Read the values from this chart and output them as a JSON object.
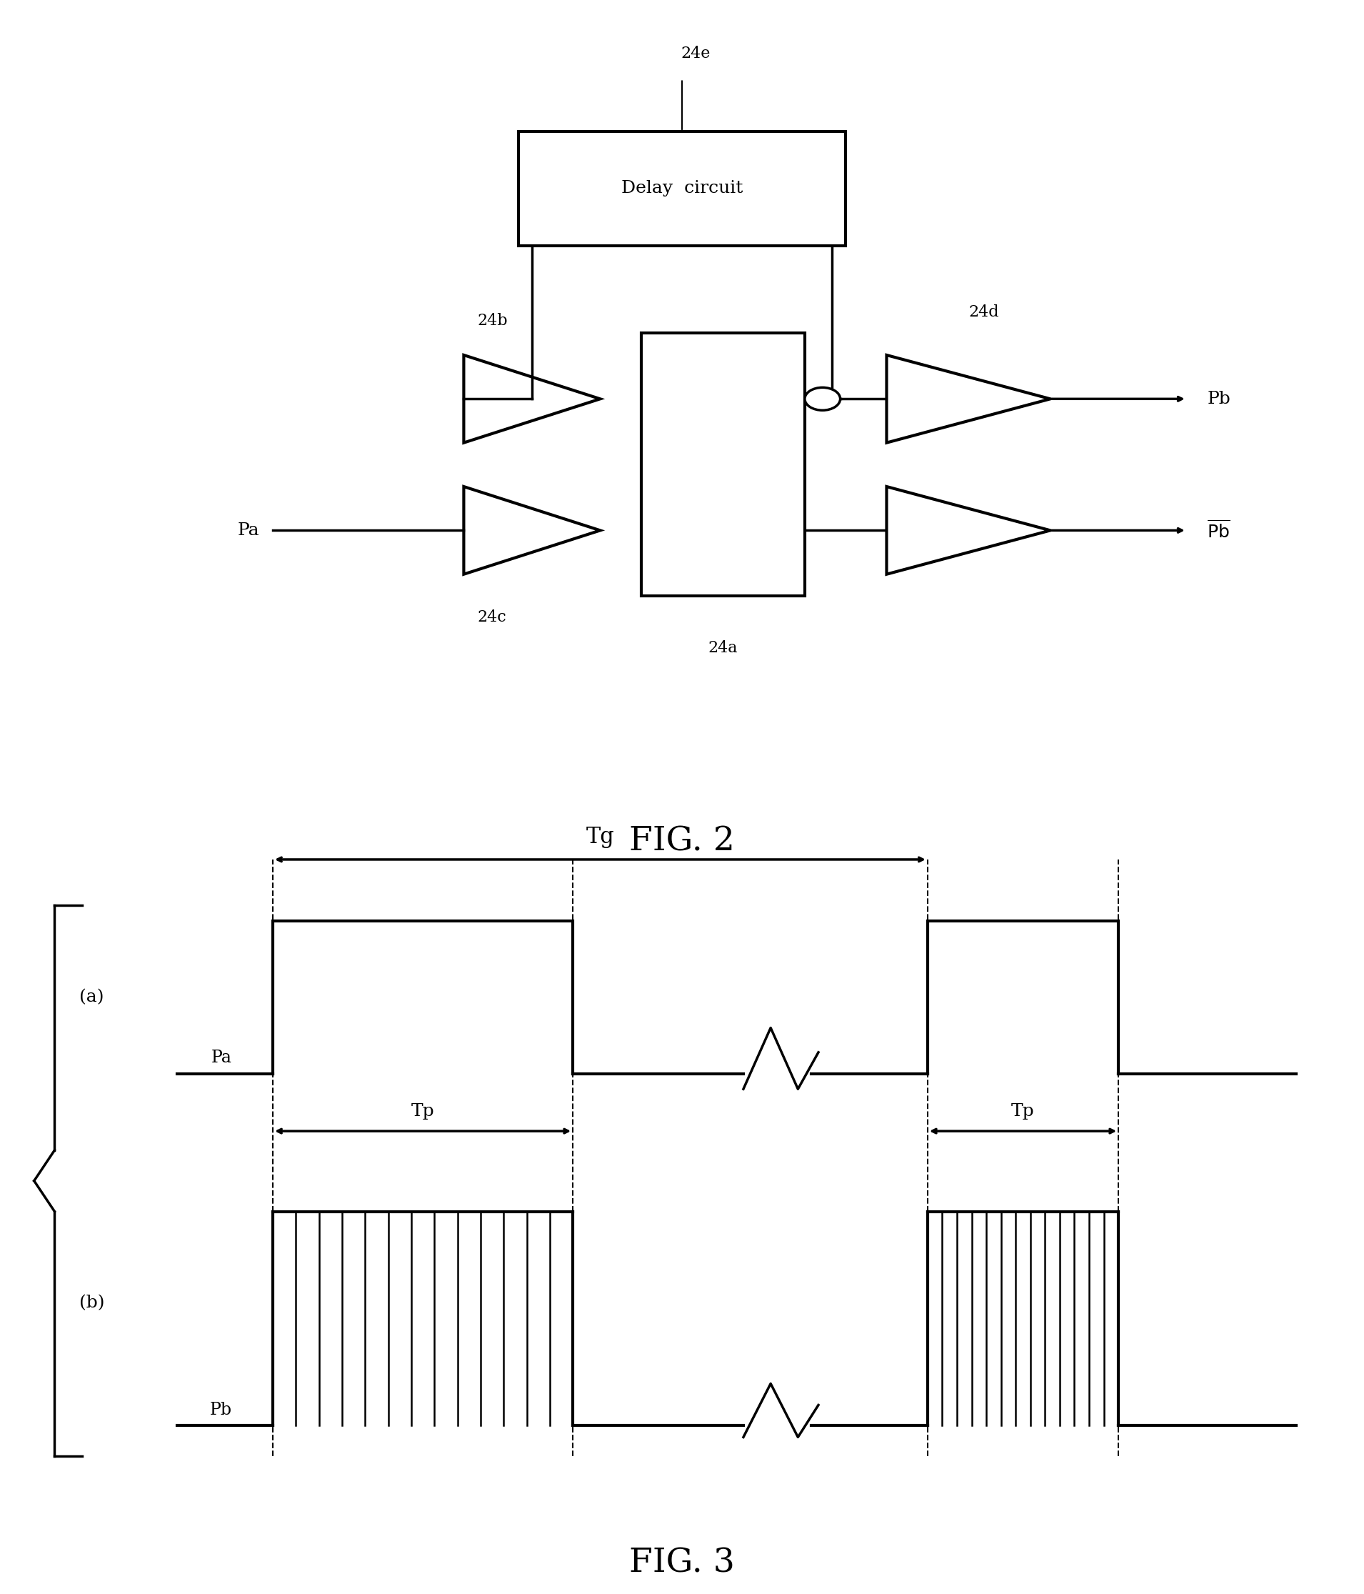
{
  "fig2_title": "FIG. 2",
  "fig3_title": "FIG. 3",
  "bg_color": "#ffffff",
  "line_color": "#000000",
  "label_24e": "24e",
  "label_24b": "24b",
  "label_24c": "24c",
  "label_24a": "24a",
  "label_24d": "24d",
  "label_Pa": "Pa",
  "label_Pb": "Pb",
  "label_Pb_bar": "Pb",
  "label_Tg": "Tg",
  "label_Tp": "Tp",
  "label_a": "(a)",
  "label_b": "(b)",
  "label_Pa_waveform": "Pa",
  "label_Pb_waveform": "Pb"
}
